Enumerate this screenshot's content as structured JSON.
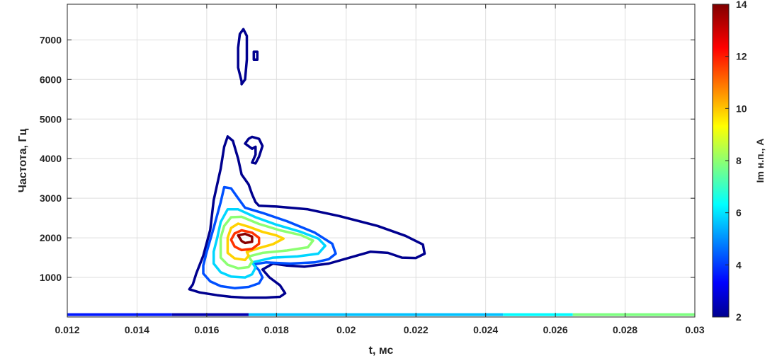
{
  "chart_data": {
    "type": "contour",
    "xlabel": "t, мс",
    "ylabel": "Частота, Гц",
    "colorbar_label": "Im н.п., А",
    "xlim": [
      0.012,
      0.03
    ],
    "ylim": [
      0,
      7900
    ],
    "xticks": [
      0.012,
      0.014,
      0.016,
      0.018,
      0.02,
      0.022,
      0.024,
      0.026,
      0.028,
      0.03
    ],
    "xtick_labels": [
      "0.012",
      "0.014",
      "0.016",
      "0.018",
      "0.02",
      "0.022",
      "0.024",
      "0.026",
      "0.028",
      "0.03"
    ],
    "yticks": [
      1000,
      2000,
      3000,
      4000,
      5000,
      6000,
      7000
    ],
    "ytick_labels": [
      "1000",
      "2000",
      "3000",
      "4000",
      "5000",
      "6000",
      "7000"
    ],
    "colorbar": {
      "range": [
        2,
        14
      ],
      "ticks": [
        2,
        4,
        6,
        8,
        10,
        12,
        14
      ],
      "tick_labels": [
        "2",
        "4",
        "6",
        "8",
        "10",
        "12",
        "14"
      ],
      "colormap": "jet"
    },
    "grid": true,
    "peak": {
      "t": 0.0171,
      "f": 2000,
      "value": 14
    },
    "contours": [
      {
        "level": 2,
        "color": "#00008f",
        "paths": [
          [
            [
              0.0156,
              820
            ],
            [
              0.0155,
              700
            ],
            [
              0.0158,
              620
            ],
            [
              0.0163,
              550
            ],
            [
              0.0167,
              510
            ],
            [
              0.0171,
              490
            ],
            [
              0.0177,
              490
            ],
            [
              0.0181,
              510
            ],
            [
              0.01825,
              600
            ],
            [
              0.0181,
              800
            ],
            [
              0.0178,
              1000
            ],
            [
              0.0176,
              1200
            ],
            [
              0.0179,
              1350
            ],
            [
              0.0183,
              1300
            ],
            [
              0.0188,
              1270
            ],
            [
              0.0195,
              1350
            ],
            [
              0.0203,
              1550
            ],
            [
              0.0207,
              1650
            ],
            [
              0.0212,
              1620
            ],
            [
              0.0216,
              1500
            ],
            [
              0.022,
              1490
            ],
            [
              0.02225,
              1600
            ],
            [
              0.0222,
              1830
            ],
            [
              0.0217,
              2050
            ],
            [
              0.0209,
              2300
            ],
            [
              0.0198,
              2550
            ],
            [
              0.0189,
              2720
            ],
            [
              0.018,
              2790
            ],
            [
              0.0175,
              2810
            ],
            [
              0.0174,
              2900
            ],
            [
              0.0173,
              3100
            ],
            [
              0.0172,
              3350
            ],
            [
              0.017,
              3600
            ],
            [
              0.0169,
              4000
            ],
            [
              0.01675,
              4450
            ],
            [
              0.0166,
              4560
            ],
            [
              0.0165,
              4300
            ],
            [
              0.0164,
              3750
            ],
            [
              0.0162,
              2950
            ],
            [
              0.0161,
              2200
            ],
            [
              0.0159,
              1550
            ],
            [
              0.0157,
              1100
            ],
            [
              0.0156,
              820
            ]
          ],
          [
            [
              0.0174,
              4300
            ],
            [
              0.0173,
              4250
            ],
            [
              0.0171,
              4380
            ],
            [
              0.0172,
              4500
            ],
            [
              0.0173,
              4550
            ],
            [
              0.0175,
              4500
            ],
            [
              0.0176,
              4320
            ],
            [
              0.0175,
              4050
            ],
            [
              0.0174,
              3880
            ],
            [
              0.0173,
              3900
            ],
            [
              0.0174,
              4100
            ],
            [
              0.0174,
              4300
            ]
          ],
          [
            [
              0.017,
              5950
            ],
            [
              0.0169,
              6300
            ],
            [
              0.0169,
              6800
            ],
            [
              0.01695,
              7150
            ],
            [
              0.01705,
              7270
            ],
            [
              0.01715,
              7100
            ],
            [
              0.01715,
              6500
            ],
            [
              0.0171,
              6000
            ],
            [
              0.017,
              5880
            ],
            [
              0.017,
              5950
            ]
          ],
          [
            [
              0.01735,
              6500
            ],
            [
              0.01735,
              6700
            ],
            [
              0.01745,
              6700
            ],
            [
              0.01745,
              6500
            ],
            [
              0.01735,
              6500
            ]
          ]
        ]
      },
      {
        "level": 4,
        "color": "#0050ff",
        "paths": [
          [
            [
              0.0159,
              1100
            ],
            [
              0.0161,
              900
            ],
            [
              0.0164,
              780
            ],
            [
              0.0168,
              730
            ],
            [
              0.0172,
              760
            ],
            [
              0.0175,
              850
            ],
            [
              0.0176,
              1000
            ],
            [
              0.0175,
              1180
            ],
            [
              0.01735,
              1330
            ],
            [
              0.0177,
              1380
            ],
            [
              0.0184,
              1350
            ],
            [
              0.0191,
              1380
            ],
            [
              0.0195,
              1460
            ],
            [
              0.0197,
              1600
            ],
            [
              0.0196,
              1850
            ],
            [
              0.0191,
              2130
            ],
            [
              0.0183,
              2420
            ],
            [
              0.0176,
              2630
            ],
            [
              0.0171,
              2760
            ],
            [
              0.0169,
              3000
            ],
            [
              0.0167,
              3250
            ],
            [
              0.0165,
              3280
            ],
            [
              0.0164,
              2900
            ],
            [
              0.0162,
              2250
            ],
            [
              0.016,
              1650
            ],
            [
              0.0159,
              1300
            ],
            [
              0.0159,
              1100
            ]
          ]
        ]
      },
      {
        "level": 6,
        "color": "#00d6ff",
        "paths": [
          [
            [
              0.0162,
              1350
            ],
            [
              0.0164,
              1130
            ],
            [
              0.0167,
              1020
            ],
            [
              0.0171,
              1000
            ],
            [
              0.0173,
              1080
            ],
            [
              0.0174,
              1250
            ],
            [
              0.0173,
              1380
            ],
            [
              0.0179,
              1500
            ],
            [
              0.0186,
              1530
            ],
            [
              0.0192,
              1600
            ],
            [
              0.0194,
              1800
            ],
            [
              0.0192,
              1980
            ],
            [
              0.0187,
              2150
            ],
            [
              0.018,
              2330
            ],
            [
              0.0174,
              2520
            ],
            [
              0.0169,
              2720
            ],
            [
              0.0166,
              2720
            ],
            [
              0.0164,
              2400
            ],
            [
              0.0163,
              2000
            ],
            [
              0.0162,
              1650
            ],
            [
              0.0162,
              1350
            ]
          ]
        ]
      },
      {
        "level": 8,
        "color": "#8cff72",
        "paths": [
          [
            [
              0.0164,
              1500
            ],
            [
              0.0166,
              1320
            ],
            [
              0.0169,
              1230
            ],
            [
              0.0172,
              1260
            ],
            [
              0.0173,
              1400
            ],
            [
              0.0172,
              1530
            ],
            [
              0.0176,
              1620
            ],
            [
              0.0183,
              1680
            ],
            [
              0.0189,
              1760
            ],
            [
              0.01905,
              1930
            ],
            [
              0.0187,
              2070
            ],
            [
              0.0181,
              2190
            ],
            [
              0.0175,
              2350
            ],
            [
              0.017,
              2530
            ],
            [
              0.0167,
              2520
            ],
            [
              0.0165,
              2300
            ],
            [
              0.0164,
              2000
            ],
            [
              0.0164,
              1750
            ],
            [
              0.0164,
              1500
            ]
          ]
        ]
      },
      {
        "level": 10,
        "color": "#ffd200",
        "paths": [
          [
            [
              0.0166,
              1620
            ],
            [
              0.0168,
              1480
            ],
            [
              0.0171,
              1440
            ],
            [
              0.0172,
              1550
            ],
            [
              0.01715,
              1640
            ],
            [
              0.0175,
              1740
            ],
            [
              0.0179,
              1840
            ],
            [
              0.0182,
              1980
            ],
            [
              0.018,
              2060
            ],
            [
              0.0176,
              2150
            ],
            [
              0.0172,
              2280
            ],
            [
              0.0169,
              2360
            ],
            [
              0.0167,
              2250
            ],
            [
              0.0166,
              2000
            ],
            [
              0.0166,
              1800
            ],
            [
              0.0166,
              1620
            ]
          ]
        ]
      },
      {
        "level": 12,
        "color": "#ff3300",
        "paths": [
          [
            [
              0.0168,
              1780
            ],
            [
              0.017,
              1690
            ],
            [
              0.0173,
              1720
            ],
            [
              0.0175,
              1850
            ],
            [
              0.0175,
              2000
            ],
            [
              0.0173,
              2130
            ],
            [
              0.017,
              2190
            ],
            [
              0.0168,
              2110
            ],
            [
              0.0167,
              1950
            ],
            [
              0.0168,
              1780
            ]
          ]
        ]
      },
      {
        "level": 14,
        "color": "#8a0000",
        "paths": [
          [
            [
              0.017,
              1920
            ],
            [
              0.0171,
              1870
            ],
            [
              0.0173,
              1900
            ],
            [
              0.0173,
              2030
            ],
            [
              0.0171,
              2100
            ],
            [
              0.0169,
              2060
            ],
            [
              0.017,
              1920
            ]
          ]
        ]
      }
    ],
    "baseline_bands": [
      {
        "t_start": 0.012,
        "t_end": 0.015,
        "value": 3.6
      },
      {
        "t_start": 0.015,
        "t_end": 0.0172,
        "value": 2.4
      },
      {
        "t_start": 0.0172,
        "t_end": 0.0245,
        "value": 5.6
      },
      {
        "t_start": 0.0245,
        "t_end": 0.0265,
        "value": 6.3
      },
      {
        "t_start": 0.0265,
        "t_end": 0.03,
        "value": 7.8
      }
    ],
    "baseline_frequency": 60
  }
}
